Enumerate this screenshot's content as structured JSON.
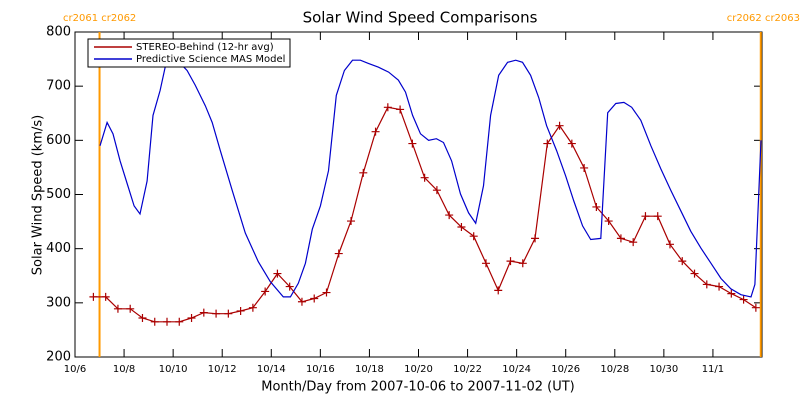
{
  "chart_data": {
    "type": "line",
    "title": "Solar Wind Speed Comparisons",
    "xlabel": "Month/Day from 2007-10-06 to 2007-11-02 (UT)",
    "ylabel": "Solar Wind Speed (km/s)",
    "xlim": [
      0,
      28
    ],
    "ylim": [
      200,
      800
    ],
    "yticks": [
      200,
      300,
      400,
      500,
      600,
      700,
      800
    ],
    "xticks": [
      {
        "value": 0,
        "label": "10/6"
      },
      {
        "value": 2,
        "label": "10/8"
      },
      {
        "value": 4,
        "label": "10/10"
      },
      {
        "value": 6,
        "label": "10/12"
      },
      {
        "value": 8,
        "label": "10/14"
      },
      {
        "value": 10,
        "label": "10/16"
      },
      {
        "value": 12,
        "label": "10/18"
      },
      {
        "value": 14,
        "label": "10/20"
      },
      {
        "value": 16,
        "label": "10/22"
      },
      {
        "value": 18,
        "label": "10/24"
      },
      {
        "value": 20,
        "label": "10/26"
      },
      {
        "value": 22,
        "label": "10/28"
      },
      {
        "value": 24,
        "label": "10/30"
      },
      {
        "value": 26,
        "label": "11/1"
      }
    ],
    "legend": "upper left",
    "annotations": [
      {
        "text": "cr2061 cr2062",
        "x": 1.0,
        "color": "#ff9900",
        "corner": "left"
      },
      {
        "text": "cr2062 cr2063",
        "x": 27.95,
        "color": "#ff9900",
        "corner": "right"
      }
    ],
    "series": [
      {
        "name": "STEREO-Behind (12-hr avg)",
        "color": "#aa0000",
        "marker": "plus",
        "x": [
          0.75,
          1.25,
          1.75,
          2.25,
          2.75,
          3.25,
          3.75,
          4.25,
          4.75,
          5.25,
          5.75,
          6.25,
          6.75,
          7.25,
          7.75,
          8.25,
          8.75,
          9.25,
          9.75,
          10.25,
          10.75,
          11.25,
          11.75,
          12.25,
          12.75,
          13.25,
          13.75,
          14.25,
          14.75,
          15.25,
          15.75,
          16.25,
          16.75,
          17.25,
          17.75,
          18.25,
          18.75,
          19.25,
          19.75,
          20.25,
          20.75,
          21.25,
          21.75,
          22.25,
          22.75,
          23.25,
          23.75,
          24.25,
          24.75,
          25.25,
          25.75,
          26.25,
          26.75,
          27.25,
          27.75
        ],
        "values": [
          311,
          311,
          289,
          289,
          272,
          265,
          265,
          265,
          272,
          282,
          280,
          280,
          285,
          291,
          321,
          354,
          330,
          302,
          308,
          319,
          391,
          451,
          540,
          616,
          661,
          657,
          594,
          531,
          508,
          462,
          440,
          423,
          373,
          323,
          377,
          373,
          419,
          594,
          627,
          594,
          549,
          477,
          451,
          419,
          412,
          460,
          460,
          408,
          377,
          354,
          334,
          330,
          317,
          306,
          291
        ]
      },
      {
        "name": "Predictive Science MAS Model",
        "color": "#0000cc",
        "marker": "none",
        "x": [
          1.02,
          1.31,
          1.55,
          1.84,
          2.41,
          2.65,
          2.94,
          3.18,
          3.47,
          3.71,
          3.96,
          4.29,
          4.57,
          4.9,
          5.31,
          5.59,
          5.92,
          6.41,
          6.94,
          7.47,
          7.96,
          8.49,
          8.78,
          9.1,
          9.39,
          9.67,
          10.0,
          10.33,
          10.65,
          10.98,
          11.31,
          11.63,
          11.96,
          12.37,
          12.78,
          13.18,
          13.47,
          13.76,
          14.08,
          14.41,
          14.73,
          15.02,
          15.35,
          15.71,
          16.04,
          16.33,
          16.65,
          16.94,
          17.27,
          17.63,
          17.96,
          18.24,
          18.57,
          18.9,
          19.22,
          19.63,
          20.0,
          20.33,
          20.69,
          21.02,
          21.43,
          21.71,
          22.04,
          22.37,
          22.69,
          23.06,
          23.47,
          23.88,
          24.29,
          24.69,
          25.1,
          25.51,
          25.92,
          26.33,
          26.73,
          27.14,
          27.55,
          27.71,
          27.96
        ],
        "values": [
          590,
          633,
          612,
          562,
          479,
          464,
          525,
          646,
          692,
          742,
          748,
          742,
          729,
          702,
          664,
          633,
          581,
          507,
          429,
          376,
          339,
          311,
          311,
          336,
          373,
          436,
          479,
          544,
          683,
          729,
          748,
          748,
          742,
          735,
          726,
          711,
          689,
          646,
          612,
          600,
          603,
          596,
          562,
          501,
          466,
          447,
          516,
          646,
          720,
          744,
          748,
          744,
          720,
          679,
          627,
          581,
          534,
          488,
          442,
          417,
          419,
          651,
          668,
          670,
          661,
          637,
          590,
          547,
          507,
          470,
          432,
          401,
          373,
          345,
          326,
          315,
          311,
          334,
          600
        ]
      }
    ]
  }
}
